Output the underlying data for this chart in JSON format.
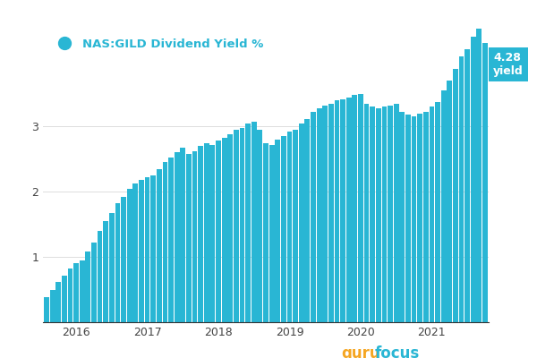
{
  "title": "NAS:GILD Dividend Yield %",
  "bar_color": "#29b6d4",
  "background_color": "#ffffff",
  "annotation_bg": "#29b6d4",
  "annotation_text": "4.28\nyield",
  "ylim": [
    0,
    4.5
  ],
  "yticks": [
    1,
    2,
    3
  ],
  "x_labels": [
    "2016",
    "2017",
    "2018",
    "2019",
    "2020",
    "2021"
  ],
  "year_positions": [
    5,
    17,
    29,
    41,
    53,
    65
  ],
  "values": [
    0.39,
    0.5,
    0.62,
    0.72,
    0.82,
    0.9,
    0.95,
    1.08,
    1.22,
    1.4,
    1.55,
    1.68,
    1.82,
    1.92,
    2.05,
    2.12,
    2.18,
    2.22,
    2.25,
    2.35,
    2.45,
    2.52,
    2.6,
    2.68,
    2.58,
    2.62,
    2.7,
    2.75,
    2.72,
    2.78,
    2.82,
    2.88,
    2.95,
    2.98,
    3.05,
    3.08,
    2.95,
    2.75,
    2.72,
    2.8,
    2.85,
    2.92,
    2.95,
    3.05,
    3.12,
    3.22,
    3.28,
    3.32,
    3.35,
    3.4,
    3.42,
    3.45,
    3.48,
    3.5,
    3.35,
    3.3,
    3.28,
    3.3,
    3.32,
    3.35,
    3.22,
    3.18,
    3.15,
    3.2,
    3.22,
    3.3,
    3.38,
    3.55,
    3.7,
    3.88,
    4.08,
    4.18,
    4.38,
    4.62,
    4.28
  ]
}
